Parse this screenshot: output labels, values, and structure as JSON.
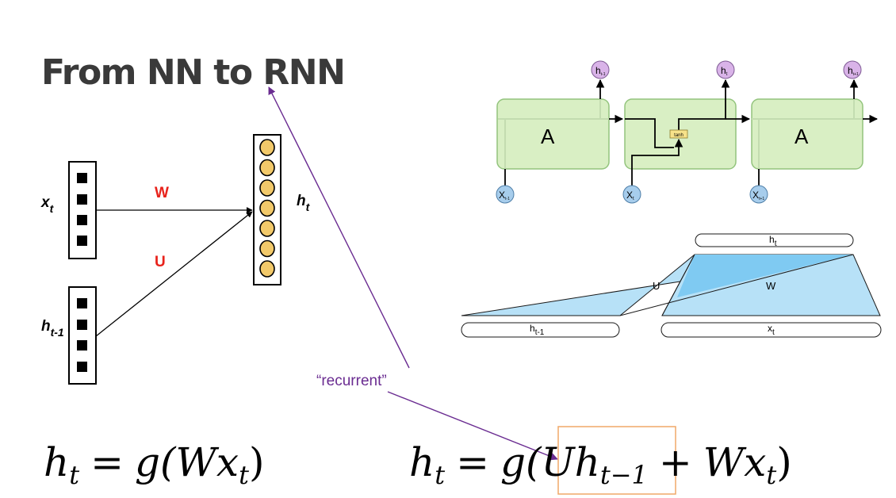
{
  "title": "From NN to RNN",
  "left_diagram": {
    "input_label": "x",
    "input_label_sub": "t",
    "prev_label": "h",
    "prev_label_sub": "t-1",
    "output_label": "h",
    "output_label_sub": "t",
    "weight_w": "W",
    "weight_u": "U",
    "colors": {
      "weight_text": "#e8221b",
      "neuron_fill": "#f2c96a"
    }
  },
  "annotation": {
    "text": "“recurrent”",
    "color": "#6a2c91"
  },
  "lstm_chain": {
    "cell_label": "A",
    "gate_label": "tanh",
    "outputs": [
      "h",
      "h",
      "h"
    ],
    "output_subs": [
      "t-1",
      "t",
      "t+1"
    ],
    "inputs": [
      "X",
      "X",
      "X"
    ],
    "input_subs": [
      "t-1",
      "t",
      "t+1"
    ],
    "colors": {
      "cell_fill": "#d9efc4",
      "cell_stroke": "#93c47d",
      "output_fill": "#d9b3e8",
      "input_fill": "#a7cdec"
    }
  },
  "rnn_block": {
    "top_label": "h",
    "top_label_sub": "t",
    "left_label": "h",
    "left_label_sub": "t-1",
    "right_label": "x",
    "right_label_sub": "t",
    "u_label": "U",
    "w_label": "W",
    "colors": {
      "fill": "#b7e1f7",
      "overlap_fill": "#7fcaf2"
    }
  },
  "equation_left": {
    "lhs": "h",
    "lhs_sub": "t",
    "equals": "=",
    "func": "g(",
    "term": "Wx",
    "term_sub": "t",
    "close": ")"
  },
  "equation_right": {
    "lhs": "h",
    "lhs_sub": "t",
    "equals": "=",
    "func": "g(",
    "term1": "Uh",
    "term1_sub": "t−1",
    "plus": "+",
    "term2": "Wx",
    "term2_sub": "t",
    "close": ")",
    "highlight_color": "#f0a868"
  }
}
